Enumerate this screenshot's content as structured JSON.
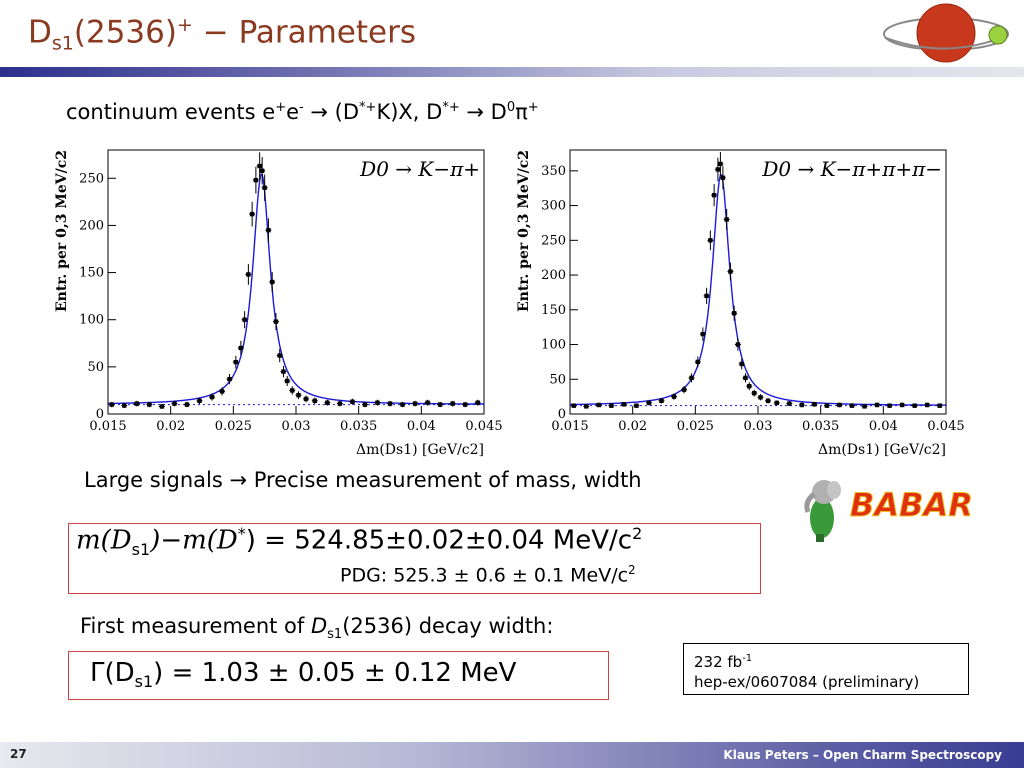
{
  "slide": {
    "title_main": "D",
    "title_sub": "s1",
    "title_mid": "(2536)",
    "title_sup": "+",
    "title_rest": " − Parameters",
    "subtitle": {
      "p1": "continuum events e",
      "s1": "+",
      "p2": "e",
      "s2": "-",
      "p3": " → (D",
      "s3": "*+",
      "p4": "K)X, D",
      "s4": "*+",
      "p5": " → D",
      "s5": "0",
      "p6": "π",
      "s6": "+"
    },
    "signals_text": "Large signals → Precise measurement of mass, width",
    "babar_label": "BABAR",
    "formula": {
      "lhs": "m(D",
      "lhs_sub": "s1",
      "mid": ")−m(D",
      "mid_sup": "*",
      "rhs": ") = 524.85±0.02±0.04 MeV/c",
      "rhs_sup": "2"
    },
    "pdg": {
      "text": "PDG:  525.3 ± 0.6 ± 0.1 MeV/c",
      "sup": "2"
    },
    "first_measurement": {
      "p1": "First measurement of ",
      "p2": "D",
      "p3": "s1",
      "p4": "(2536) decay width:"
    },
    "width_formula": {
      "p1": "Γ(D",
      "p2": "s1",
      "p3": ") = 1.03 ± 0.05 ± 0.12 MeV"
    },
    "reference": {
      "lumi": "232 fb",
      "lumi_sup": "-1",
      "paper": "hep-ex/0607084 (preliminary)"
    },
    "footer": {
      "page": "27",
      "author": "Klaus Peters – Open Charm Spectroscopy"
    },
    "colors": {
      "title": "#8b3a22",
      "box_border": "#d04040",
      "curve": "#1a1ad8",
      "points": "#000000"
    }
  },
  "chart_data": [
    {
      "type": "scatter",
      "title": "D0 → K−π+",
      "xlabel": "Δm(Ds1) [GeV/c2]",
      "ylabel": "Entr. per 0,3 MeV/c2",
      "xlim": [
        0.015,
        0.045
      ],
      "ylim": [
        0,
        280
      ],
      "xticks": [
        "0.015",
        "0.02",
        "0.025",
        "0.03",
        "0.035",
        "0.04",
        "0.045"
      ],
      "yticks": [
        "0",
        "50",
        "100",
        "150",
        "200",
        "250"
      ],
      "peak_x": 0.02725,
      "peak_height": 255,
      "background_level": 10,
      "series": [
        {
          "x": [
            0.0153,
            0.0163,
            0.0173,
            0.0183,
            0.0193,
            0.0203,
            0.0213,
            0.0223,
            0.0233,
            0.0241,
            0.0247,
            0.0252,
            0.0256,
            0.0259,
            0.0262,
            0.0265,
            0.0268,
            0.0271,
            0.0273,
            0.0275,
            0.0278,
            0.0281,
            0.0284,
            0.0287,
            0.029,
            0.0293,
            0.0297,
            0.0302,
            0.0308,
            0.0315,
            0.0325,
            0.0335,
            0.0345,
            0.0355,
            0.0365,
            0.0375,
            0.0385,
            0.0395,
            0.0405,
            0.0415,
            0.0425,
            0.0435,
            0.0445
          ],
          "y": [
            10,
            9,
            11,
            10,
            8,
            11,
            10,
            14,
            18,
            24,
            37,
            55,
            70,
            100,
            148,
            212,
            248,
            263,
            258,
            240,
            195,
            140,
            98,
            62,
            45,
            35,
            25,
            20,
            16,
            14,
            12,
            11,
            13,
            10,
            12,
            11,
            10,
            11,
            12,
            10,
            11,
            10,
            12
          ]
        }
      ]
    },
    {
      "type": "scatter",
      "title": "D0 → K−π+π+π−",
      "xlabel": "Δm(Ds1) [GeV/c2]",
      "ylabel": "Entr. per 0,3 MeV/c2",
      "xlim": [
        0.015,
        0.045
      ],
      "ylim": [
        0,
        380
      ],
      "xticks": [
        "0.015",
        "0.02",
        "0.025",
        "0.03",
        "0.035",
        "0.04",
        "0.045"
      ],
      "yticks": [
        "0",
        "50",
        "100",
        "150",
        "200",
        "250",
        "300",
        "350"
      ],
      "peak_x": 0.02705,
      "peak_height": 345,
      "background_level": 12,
      "series": [
        {
          "x": [
            0.0153,
            0.0163,
            0.0173,
            0.0183,
            0.0193,
            0.0203,
            0.0213,
            0.0223,
            0.0233,
            0.0241,
            0.0247,
            0.0252,
            0.0256,
            0.0259,
            0.0262,
            0.0265,
            0.0268,
            0.027,
            0.0272,
            0.0275,
            0.0278,
            0.0281,
            0.0284,
            0.0287,
            0.029,
            0.0293,
            0.0297,
            0.0302,
            0.0308,
            0.0315,
            0.0325,
            0.0335,
            0.0345,
            0.0355,
            0.0365,
            0.0375,
            0.0385,
            0.0395,
            0.0405,
            0.0415,
            0.0425,
            0.0435,
            0.0445
          ],
          "y": [
            12,
            11,
            13,
            12,
            14,
            12,
            16,
            19,
            25,
            35,
            52,
            75,
            115,
            170,
            250,
            315,
            352,
            360,
            340,
            280,
            205,
            145,
            100,
            72,
            52,
            40,
            30,
            24,
            19,
            16,
            15,
            13,
            14,
            12,
            13,
            12,
            11,
            13,
            12,
            13,
            12,
            13,
            12
          ]
        }
      ]
    }
  ]
}
